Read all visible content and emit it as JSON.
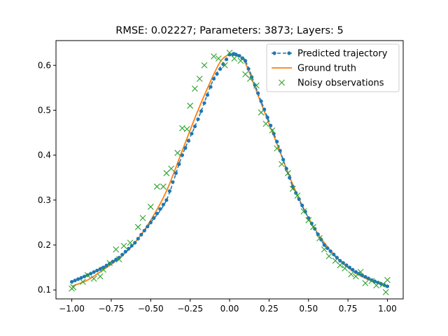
{
  "chart_data": {
    "type": "line",
    "title": "RMSE: 0.02227; Parameters: 3873; Layers: 5",
    "xlabel": "",
    "ylabel": "",
    "xlim": [
      -1.1,
      1.1
    ],
    "ylim": [
      0.08,
      0.655
    ],
    "xticks": [
      -1.0,
      -0.75,
      -0.5,
      -0.25,
      0.0,
      0.25,
      0.5,
      0.75,
      1.0
    ],
    "xtick_labels": [
      "−1.00",
      "−0.75",
      "−0.50",
      "−0.25",
      "0.00",
      "0.25",
      "0.50",
      "0.75",
      "1.00"
    ],
    "yticks": [
      0.1,
      0.2,
      0.3,
      0.4,
      0.5,
      0.6
    ],
    "ytick_labels": [
      "0.1",
      "0.2",
      "0.3",
      "0.4",
      "0.5",
      "0.6"
    ],
    "grid": false,
    "legend_position": "top-right",
    "colors": {
      "predicted": "#1f77b4",
      "ground_truth": "#ff7f0e",
      "noisy": "#2ca02c"
    },
    "series": [
      {
        "name": "Predicted trajectory",
        "style": "dashed-dot-markers",
        "x": [
          -1.0,
          -0.9,
          -0.8,
          -0.7,
          -0.6,
          -0.5,
          -0.4,
          -0.3,
          -0.2,
          -0.1,
          0.0,
          0.05,
          0.1,
          0.2,
          0.3,
          0.4,
          0.5,
          0.6,
          0.7,
          0.8,
          0.9,
          1.0
        ],
        "y": [
          0.118,
          0.133,
          0.15,
          0.172,
          0.205,
          0.25,
          0.3,
          0.4,
          0.48,
          0.57,
          0.624,
          0.624,
          0.61,
          0.52,
          0.43,
          0.33,
          0.26,
          0.2,
          0.165,
          0.14,
          0.122,
          0.108
        ]
      },
      {
        "name": "Ground truth",
        "style": "solid",
        "x": [
          -1.0,
          -0.9,
          -0.8,
          -0.7,
          -0.6,
          -0.5,
          -0.4,
          -0.3,
          -0.2,
          -0.1,
          -0.05,
          0.0,
          0.05,
          0.1,
          0.2,
          0.3,
          0.4,
          0.5,
          0.6,
          0.7,
          0.8,
          0.9,
          1.0
        ],
        "y": [
          0.108,
          0.122,
          0.145,
          0.17,
          0.205,
          0.255,
          0.32,
          0.41,
          0.5,
          0.58,
          0.612,
          0.624,
          0.622,
          0.605,
          0.515,
          0.425,
          0.335,
          0.26,
          0.205,
          0.165,
          0.137,
          0.12,
          0.108
        ]
      },
      {
        "name": "Noisy observations",
        "style": "x-markers",
        "x": [
          -1.0,
          -0.99,
          -0.93,
          -0.9,
          -0.86,
          -0.82,
          -0.8,
          -0.76,
          -0.72,
          -0.7,
          -0.67,
          -0.63,
          -0.58,
          -0.55,
          -0.5,
          -0.46,
          -0.42,
          -0.4,
          -0.37,
          -0.33,
          -0.3,
          -0.27,
          -0.25,
          -0.22,
          -0.19,
          -0.16,
          -0.1,
          -0.07,
          -0.03,
          0.0,
          0.03,
          0.07,
          0.1,
          0.13,
          0.17,
          0.2,
          0.23,
          0.27,
          0.3,
          0.33,
          0.37,
          0.4,
          0.43,
          0.47,
          0.5,
          0.53,
          0.57,
          0.6,
          0.63,
          0.67,
          0.7,
          0.73,
          0.77,
          0.8,
          0.83,
          0.86,
          0.9,
          0.93,
          0.97,
          0.99,
          1.0
        ],
        "y": [
          0.103,
          0.106,
          0.118,
          0.133,
          0.125,
          0.13,
          0.145,
          0.16,
          0.19,
          0.168,
          0.198,
          0.205,
          0.24,
          0.26,
          0.285,
          0.33,
          0.33,
          0.36,
          0.37,
          0.405,
          0.46,
          0.458,
          0.51,
          0.548,
          0.57,
          0.6,
          0.62,
          0.615,
          0.6,
          0.628,
          0.615,
          0.61,
          0.58,
          0.57,
          0.555,
          0.495,
          0.47,
          0.455,
          0.415,
          0.38,
          0.36,
          0.325,
          0.31,
          0.275,
          0.255,
          0.24,
          0.215,
          0.19,
          0.175,
          0.165,
          0.155,
          0.148,
          0.135,
          0.13,
          0.14,
          0.115,
          0.12,
          0.11,
          0.112,
          0.095,
          0.122
        ]
      }
    ]
  }
}
